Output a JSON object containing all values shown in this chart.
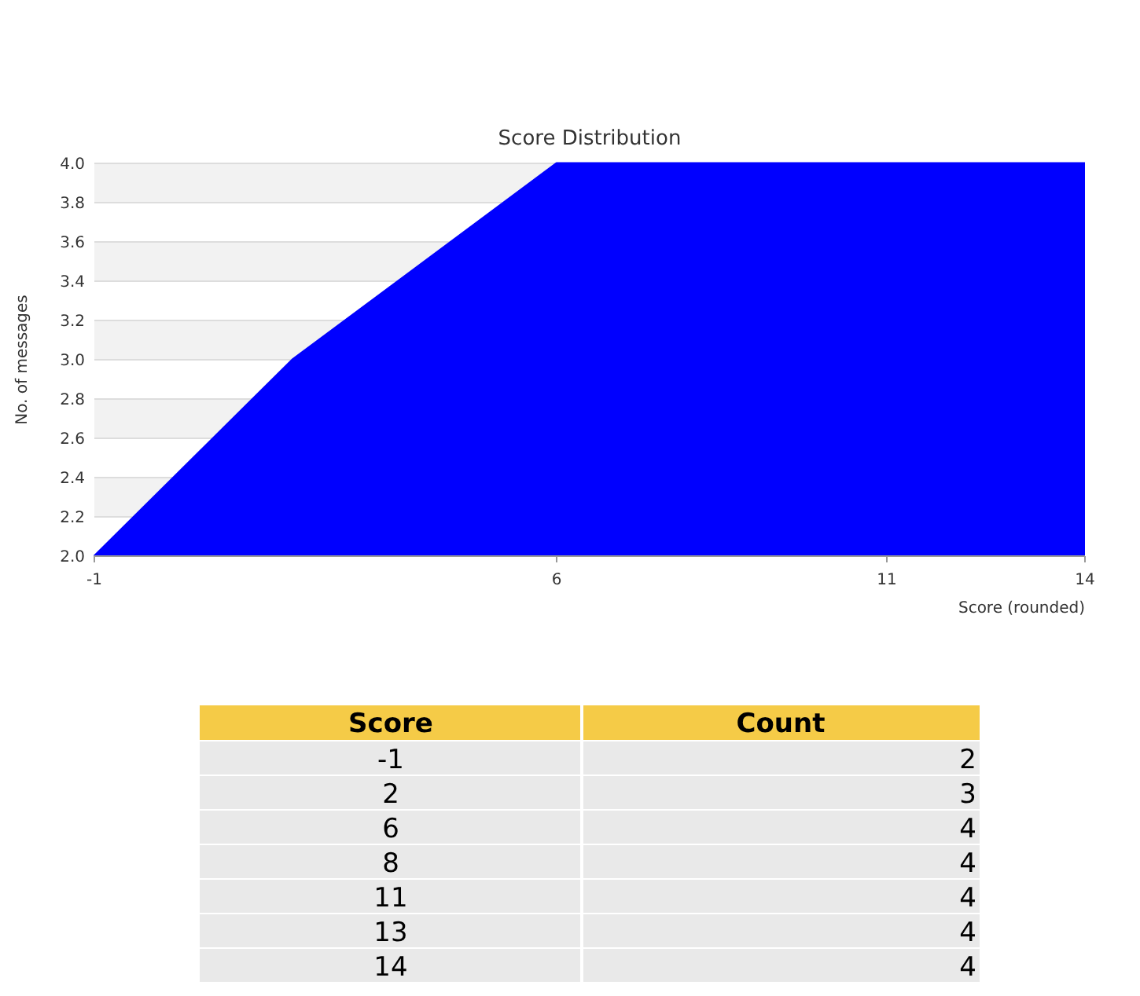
{
  "chart_data": [
    {
      "type": "area",
      "title": "Score Distribution",
      "xlabel": "Score (rounded)",
      "ylabel": "No. of messages",
      "x": [
        -1,
        2,
        6,
        8,
        11,
        13,
        14
      ],
      "values": [
        2,
        3,
        4,
        4,
        4,
        4,
        4
      ],
      "color": "#0000ff",
      "xlim": [
        -1,
        14
      ],
      "xticks": [
        -1,
        6,
        11,
        14
      ],
      "ylim": [
        2,
        4
      ],
      "yticks": [
        {
          "value": 2,
          "label": "2.0"
        },
        {
          "value": 2.2,
          "label": "2.2"
        },
        {
          "value": 2.4,
          "label": "2.4"
        },
        {
          "value": 2.6,
          "label": "2.6"
        },
        {
          "value": 2.8,
          "label": "2.8"
        },
        {
          "value": 3,
          "label": "3.0"
        },
        {
          "value": 3.2,
          "label": "3.2"
        },
        {
          "value": 3.4,
          "label": "3.4"
        },
        {
          "value": 3.6,
          "label": "3.6"
        },
        {
          "value": 3.8,
          "label": "3.8"
        },
        {
          "value": 4,
          "label": "4.0"
        }
      ],
      "grid": "y"
    },
    {
      "type": "other",
      "annotations": [
        "Score",
        "Count"
      ],
      "categories": [
        "-1",
        "2",
        "6",
        "8",
        "11",
        "13",
        "14"
      ],
      "values": [
        2,
        3,
        4,
        4,
        4,
        4,
        4
      ],
      "data_labels": true
    }
  ]
}
